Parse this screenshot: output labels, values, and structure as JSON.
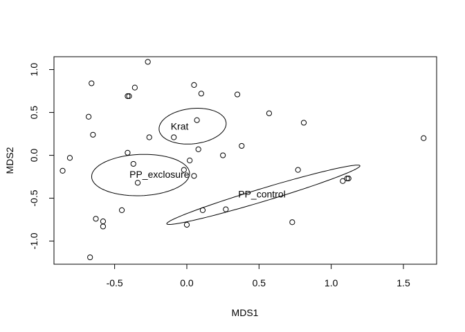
{
  "chart_data": {
    "type": "scatter",
    "xlabel": "MDS1",
    "ylabel": "MDS2",
    "xlim": [
      -0.92,
      1.73
    ],
    "ylim": [
      -1.27,
      1.15
    ],
    "x_ticks": [
      -0.5,
      0.0,
      0.5,
      1.0,
      1.5
    ],
    "x_tick_labels": [
      "-0.5",
      "0.0",
      "0.5",
      "1.0",
      "1.5"
    ],
    "y_ticks": [
      -1.0,
      -0.5,
      0.0,
      0.5,
      1.0
    ],
    "y_tick_labels": [
      "-1.0",
      "-0.5",
      "0.0",
      "0.5",
      "1.0"
    ],
    "grid": false,
    "points": [
      {
        "x": -0.86,
        "y": -0.18
      },
      {
        "x": -0.81,
        "y": -0.03
      },
      {
        "x": -0.68,
        "y": 0.45
      },
      {
        "x": -0.66,
        "y": 0.84
      },
      {
        "x": -0.65,
        "y": 0.24
      },
      {
        "x": -0.63,
        "y": -0.74
      },
      {
        "x": -0.58,
        "y": -0.77
      },
      {
        "x": -0.58,
        "y": -0.83
      },
      {
        "x": -0.67,
        "y": -1.19
      },
      {
        "x": -0.45,
        "y": -0.64
      },
      {
        "x": -0.41,
        "y": 0.69
      },
      {
        "x": -0.4,
        "y": 0.69
      },
      {
        "x": -0.36,
        "y": 0.79
      },
      {
        "x": -0.27,
        "y": 1.09
      },
      {
        "x": -0.41,
        "y": 0.03
      },
      {
        "x": -0.37,
        "y": -0.1
      },
      {
        "x": -0.34,
        "y": -0.32
      },
      {
        "x": -0.26,
        "y": 0.21
      },
      {
        "x": -0.09,
        "y": 0.21
      },
      {
        "x": -0.02,
        "y": -0.17
      },
      {
        "x": 0.02,
        "y": -0.06
      },
      {
        "x": 0.05,
        "y": 0.82
      },
      {
        "x": 0.05,
        "y": -0.24
      },
      {
        "x": 0.07,
        "y": 0.41
      },
      {
        "x": 0.08,
        "y": 0.07
      },
      {
        "x": 0.1,
        "y": 0.72
      },
      {
        "x": 0.0,
        "y": -0.81
      },
      {
        "x": 0.11,
        "y": -0.64
      },
      {
        "x": 0.25,
        "y": 0.0
      },
      {
        "x": 0.27,
        "y": -0.63
      },
      {
        "x": 0.35,
        "y": 0.71
      },
      {
        "x": 0.38,
        "y": 0.11
      },
      {
        "x": 0.57,
        "y": 0.49
      },
      {
        "x": 0.73,
        "y": -0.78
      },
      {
        "x": 0.77,
        "y": -0.17
      },
      {
        "x": 0.81,
        "y": 0.38
      },
      {
        "x": 1.08,
        "y": -0.3
      },
      {
        "x": 1.11,
        "y": -0.27
      },
      {
        "x": 1.12,
        "y": -0.27
      },
      {
        "x": 1.64,
        "y": 0.2
      }
    ],
    "ellipses": [
      {
        "label": "Krat",
        "cx": 0.04,
        "cy": 0.34,
        "rx": 0.24,
        "ry": 0.2,
        "angle_deg": 27,
        "label_x": -0.05,
        "label_y": 0.33
      },
      {
        "label": "PP_exclosure",
        "cx": -0.32,
        "cy": -0.23,
        "rx": 0.34,
        "ry": 0.24,
        "angle_deg": 6,
        "label_x": -0.19,
        "label_y": -0.23
      },
      {
        "label": "PP_control",
        "cx": 0.53,
        "cy": -0.46,
        "rx": 0.75,
        "ry": 0.07,
        "angle_deg": 27,
        "label_x": 0.52,
        "label_y": -0.46
      }
    ]
  }
}
